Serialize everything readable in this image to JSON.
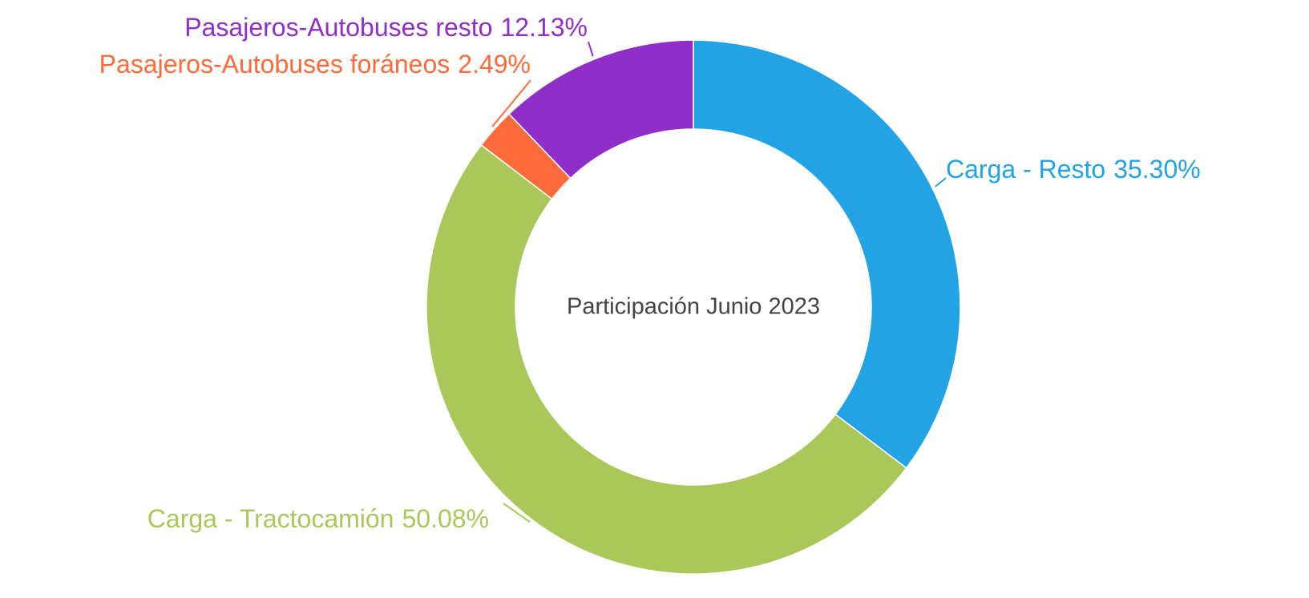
{
  "chart_data": {
    "type": "donut",
    "title": "Participación Junio 2023",
    "categories": [
      "Carga - Resto",
      "Carga - Tractocamión",
      "Pasajeros-Autobuses foráneos",
      "Pasajeros-Autobuses resto"
    ],
    "values": [
      35.3,
      50.08,
      2.49,
      12.13
    ],
    "value_labels": [
      "35.30%",
      "50.08%",
      "2.49%",
      "12.13%"
    ],
    "colors": [
      "#22a3e6",
      "#abc75a",
      "#ff6a3a",
      "#8f2ec8"
    ]
  }
}
